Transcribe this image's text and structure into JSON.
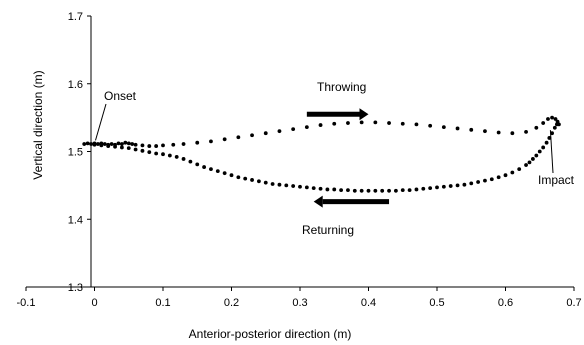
{
  "chart_data": {
    "type": "scatter",
    "title": "",
    "xlabel": "Anterior-posterior direction (m)",
    "ylabel": "Vertical direction (m)",
    "xlim": [
      -0.1,
      0.7
    ],
    "ylim": [
      1.3,
      1.7
    ],
    "x_ticks": [
      "-0.1",
      "0",
      "0.1",
      "0.2",
      "0.3",
      "0.4",
      "0.5",
      "0.6",
      "0.7"
    ],
    "y_ticks": [
      "1.3",
      "1.4",
      "1.5",
      "1.6",
      "1.7"
    ],
    "grid": false,
    "legend": "none",
    "marker_color": "#000000",
    "annotations": [
      {
        "text": "Onset",
        "x": 0.0,
        "y": 1.512
      },
      {
        "text": "Throwing",
        "arrow_direction": "right",
        "arrow_from_x": 0.31,
        "arrow_to_x": 0.4,
        "arrow_y": 1.555
      },
      {
        "text": "Returning",
        "arrow_direction": "left",
        "arrow_from_x": 0.43,
        "arrow_to_x": 0.32,
        "arrow_y": 1.426
      },
      {
        "text": "Impact",
        "x": 0.667,
        "y": 1.536
      }
    ],
    "series": [
      {
        "x": [
          -0.015,
          -0.01,
          -0.005,
          0.0,
          0.005,
          0.01,
          0.015,
          0.02,
          0.025,
          0.03,
          0.035,
          0.04,
          0.045,
          0.05,
          0.055,
          0.06,
          0.07,
          0.08,
          0.09,
          0.1,
          0.115,
          0.13,
          0.15,
          0.17,
          0.19,
          0.21,
          0.23,
          0.25,
          0.27,
          0.29,
          0.31,
          0.33,
          0.35,
          0.37,
          0.39,
          0.41,
          0.43,
          0.45,
          0.47,
          0.49,
          0.51,
          0.53,
          0.55,
          0.57,
          0.59,
          0.61,
          0.63,
          0.645,
          0.655,
          0.662,
          0.668,
          0.673,
          0.676,
          0.678
        ],
        "y": [
          1.511,
          1.512,
          1.511,
          1.512,
          1.511,
          1.512,
          1.511,
          1.51,
          1.511,
          1.51,
          1.512,
          1.511,
          1.513,
          1.512,
          1.511,
          1.51,
          1.509,
          1.508,
          1.508,
          1.509,
          1.51,
          1.511,
          1.513,
          1.515,
          1.518,
          1.521,
          1.524,
          1.527,
          1.53,
          1.533,
          1.536,
          1.539,
          1.541,
          1.542,
          1.543,
          1.543,
          1.542,
          1.541,
          1.54,
          1.538,
          1.536,
          1.534,
          1.532,
          1.53,
          1.528,
          1.527,
          1.529,
          1.535,
          1.542,
          1.548,
          1.55,
          1.548,
          1.544,
          1.54
        ]
      },
      {
        "x": [
          0.675,
          0.672,
          0.668,
          0.664,
          0.66,
          0.655,
          0.65,
          0.645,
          0.64,
          0.635,
          0.63,
          0.62,
          0.61,
          0.6,
          0.59,
          0.58,
          0.57,
          0.56,
          0.55,
          0.54,
          0.53,
          0.52,
          0.51,
          0.5,
          0.49,
          0.48,
          0.47,
          0.46,
          0.45,
          0.44,
          0.43,
          0.42,
          0.41,
          0.4,
          0.39,
          0.38,
          0.37,
          0.36,
          0.35,
          0.34,
          0.33,
          0.32,
          0.31,
          0.3,
          0.29,
          0.28,
          0.27,
          0.26,
          0.25,
          0.24,
          0.23,
          0.22,
          0.21,
          0.2,
          0.19,
          0.18,
          0.17,
          0.16,
          0.15,
          0.14,
          0.13,
          0.12,
          0.11,
          0.1,
          0.09,
          0.08,
          0.07,
          0.06,
          0.05,
          0.04,
          0.03,
          0.02,
          0.01,
          0.0
        ],
        "y": [
          1.54,
          1.535,
          1.527,
          1.52,
          1.513,
          1.506,
          1.5,
          1.494,
          1.489,
          1.484,
          1.48,
          1.474,
          1.469,
          1.465,
          1.462,
          1.459,
          1.457,
          1.455,
          1.453,
          1.451,
          1.45,
          1.449,
          1.448,
          1.447,
          1.446,
          1.445,
          1.444,
          1.443,
          1.443,
          1.442,
          1.442,
          1.442,
          1.442,
          1.442,
          1.442,
          1.442,
          1.443,
          1.443,
          1.444,
          1.444,
          1.445,
          1.446,
          1.447,
          1.448,
          1.449,
          1.45,
          1.451,
          1.452,
          1.454,
          1.456,
          1.458,
          1.46,
          1.462,
          1.465,
          1.468,
          1.471,
          1.474,
          1.477,
          1.481,
          1.485,
          1.489,
          1.492,
          1.494,
          1.496,
          1.497,
          1.499,
          1.501,
          1.503,
          1.505,
          1.506,
          1.507,
          1.508,
          1.509,
          1.51
        ]
      }
    ]
  }
}
